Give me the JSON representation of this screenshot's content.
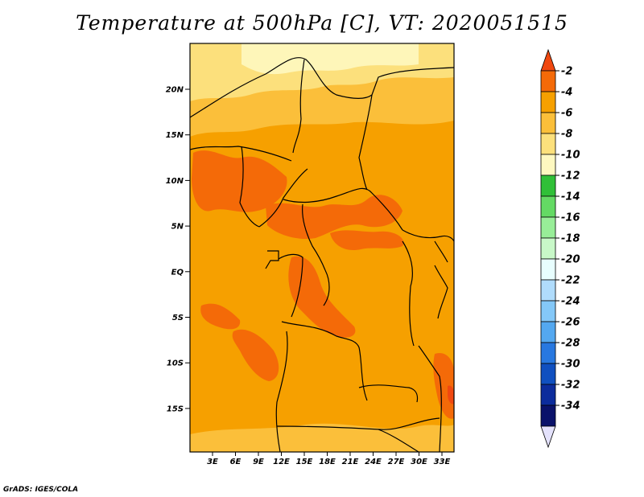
{
  "title": "Temperature at 500hPa [C], VT: 2020051515",
  "credit": "GrADS: IGES/COLA",
  "map": {
    "lat_labels": [
      "20N",
      "15N",
      "10N",
      "5N",
      "EQ",
      "5S",
      "10S",
      "15S"
    ],
    "lon_labels": [
      "3E",
      "6E",
      "9E",
      "12E",
      "15E",
      "18E",
      "21E",
      "24E",
      "27E",
      "30E",
      "33E"
    ]
  },
  "colorbar": {
    "labels": [
      "-2",
      "-4",
      "-6",
      "-8",
      "-10",
      "-12",
      "-14",
      "-16",
      "-18",
      "-20",
      "-22",
      "-24",
      "-26",
      "-28",
      "-30",
      "-32",
      "-34"
    ],
    "colors": [
      "#f04810",
      "#f46a08",
      "#f6a000",
      "#fbbf3a",
      "#fce07c",
      "#fef8c0",
      "#30c038",
      "#64da64",
      "#98ee98",
      "#c8f8c8",
      "#e8fefe",
      "#b0dcfc",
      "#84c8f8",
      "#54a8f0",
      "#2878e0",
      "#1050c0",
      "#0c2c9c",
      "#0a126a",
      "#e4e2fc"
    ]
  }
}
